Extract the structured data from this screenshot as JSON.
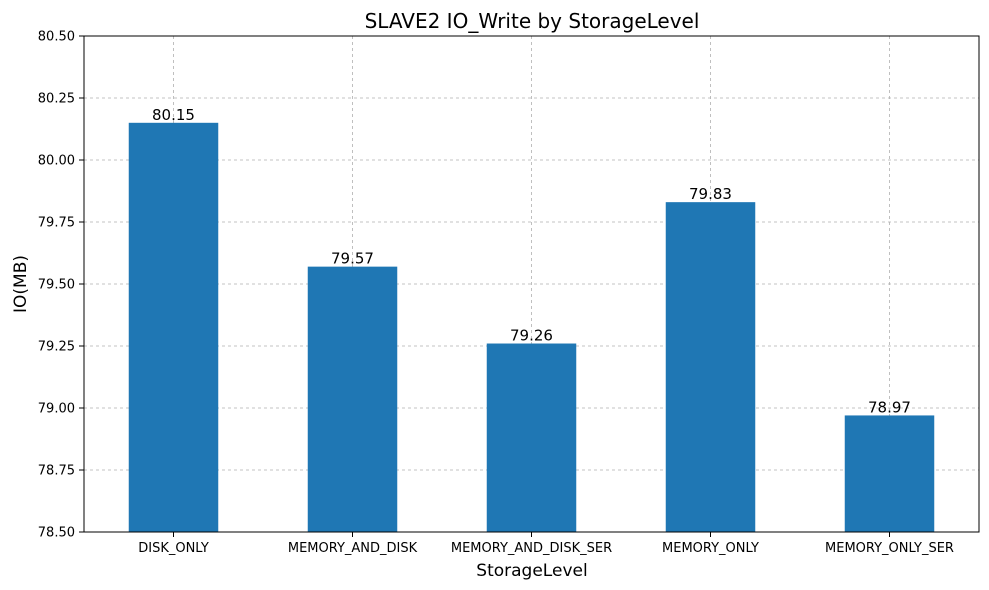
{
  "chart_data": {
    "type": "bar",
    "title": "SLAVE2 IO_Write by StorageLevel",
    "xlabel": "StorageLevel",
    "ylabel": "IO(MB)",
    "categories": [
      "DISK_ONLY",
      "MEMORY_AND_DISK",
      "MEMORY_AND_DISK_SER",
      "MEMORY_ONLY",
      "MEMORY_ONLY_SER"
    ],
    "values": [
      80.15,
      79.57,
      79.26,
      79.83,
      78.97
    ],
    "value_labels": [
      "80.15",
      "79.57",
      "79.26",
      "79.83",
      "78.97"
    ],
    "ylim": [
      78.5,
      80.5
    ],
    "yticks": [
      78.5,
      78.75,
      79.0,
      79.25,
      79.5,
      79.75,
      80.0,
      80.25,
      80.5
    ],
    "ytick_labels": [
      "78.50",
      "78.75",
      "79.00",
      "79.25",
      "79.50",
      "79.75",
      "80.00",
      "80.25",
      "80.50"
    ],
    "grid": true,
    "bar_color": "#1f77b4"
  }
}
